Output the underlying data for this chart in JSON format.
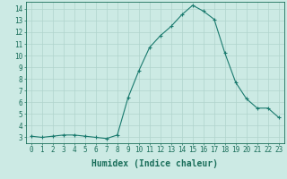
{
  "x": [
    0,
    1,
    2,
    3,
    4,
    5,
    6,
    7,
    8,
    9,
    10,
    11,
    12,
    13,
    14,
    15,
    16,
    17,
    18,
    19,
    20,
    21,
    22,
    23
  ],
  "y": [
    3.1,
    3.0,
    3.1,
    3.2,
    3.2,
    3.1,
    3.0,
    2.9,
    3.2,
    6.4,
    8.7,
    10.7,
    11.7,
    12.5,
    13.5,
    14.3,
    13.8,
    13.1,
    10.2,
    7.7,
    6.3,
    5.5,
    5.5,
    4.7
  ],
  "line_color": "#1a7a6e",
  "marker": "+",
  "marker_size": 3,
  "xlabel": "Humidex (Indice chaleur)",
  "xlim": [
    -0.5,
    23.5
  ],
  "ylim": [
    2.5,
    14.6
  ],
  "yticks": [
    3,
    4,
    5,
    6,
    7,
    8,
    9,
    10,
    11,
    12,
    13,
    14
  ],
  "xticks": [
    0,
    1,
    2,
    3,
    4,
    5,
    6,
    7,
    8,
    9,
    10,
    11,
    12,
    13,
    14,
    15,
    16,
    17,
    18,
    19,
    20,
    21,
    22,
    23
  ],
  "bg_color": "#cceae4",
  "grid_color": "#b0d4cc",
  "line_label_color": "#1a6e5a",
  "tick_fontsize": 5.5,
  "xlabel_fontsize": 7.0,
  "linewidth": 0.8,
  "markeredgewidth": 0.8
}
